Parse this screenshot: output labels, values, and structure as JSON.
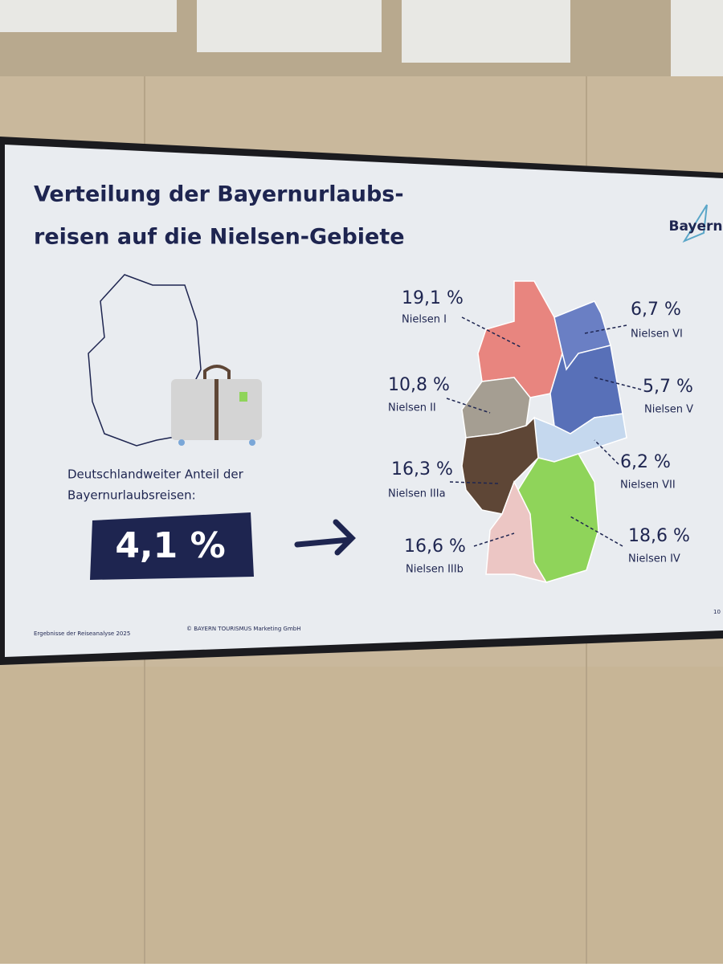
{
  "slide": {
    "title": [
      "Verteilung  der Bayernurlaubs-",
      "reisen auf die Nielsen-Gebiete"
    ],
    "logo": "Bayern",
    "share_text": [
      "Deutschlandweiter Anteil der",
      "Bayernurlaubsreisen:"
    ],
    "share_value": "4,1 %",
    "regions": [
      {
        "name": "Nielsen I",
        "value": "19,1 %"
      },
      {
        "name": "Nielsen VI",
        "value": "6,7 %"
      },
      {
        "name": "Nielsen V",
        "value": "5,7 %"
      },
      {
        "name": "Nielsen II",
        "value": "10,8 %"
      },
      {
        "name": "Nielsen VII",
        "value": "6,2 %"
      },
      {
        "name": "Nielsen IIIa",
        "value": "16,3 %"
      },
      {
        "name": "Nielsen IIIb",
        "value": "16,6 %"
      },
      {
        "name": "Nielsen IV",
        "value": "18,6 %"
      }
    ],
    "footer": [
      "Ergebnisse der Reiseanalyse 2025",
      "© BAYERN TOURISMUS Marketing GmbH"
    ],
    "page": "10"
  }
}
